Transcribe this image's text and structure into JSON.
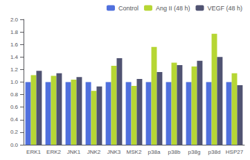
{
  "chart_data": {
    "type": "bar",
    "categories": [
      "ERK1",
      "ERK2",
      "JNK1",
      "JNK2",
      "JNK3",
      "MSK2",
      "p38a",
      "p38b",
      "p38g",
      "p38d",
      "HSP27"
    ],
    "series": [
      {
        "name": "Control",
        "values": [
          1.0,
          1.0,
          1.0,
          1.0,
          1.0,
          1.0,
          1.0,
          1.0,
          1.0,
          1.0,
          1.0
        ]
      },
      {
        "name": "Ang II (48 h)",
        "values": [
          1.11,
          1.1,
          1.04,
          0.86,
          1.26,
          0.94,
          1.56,
          1.31,
          1.25,
          1.77,
          1.14
        ]
      },
      {
        "name": "VEGF (48 h)",
        "values": [
          1.18,
          1.14,
          1.08,
          0.93,
          1.38,
          1.05,
          1.16,
          1.27,
          1.34,
          1.4,
          0.95
        ]
      }
    ],
    "ylim": [
      0.0,
      2.0
    ],
    "yticks": [
      {
        "value": 0.0,
        "label": "0.0"
      },
      0.2,
      0.4,
      0.6,
      0.8,
      {
        "value": 1.0,
        "label": "1.0"
      },
      1.2,
      1.4,
      1.6,
      1.8,
      {
        "value": 2.0,
        "label": "2.0"
      }
    ],
    "grid": false,
    "legend": "upper right"
  }
}
